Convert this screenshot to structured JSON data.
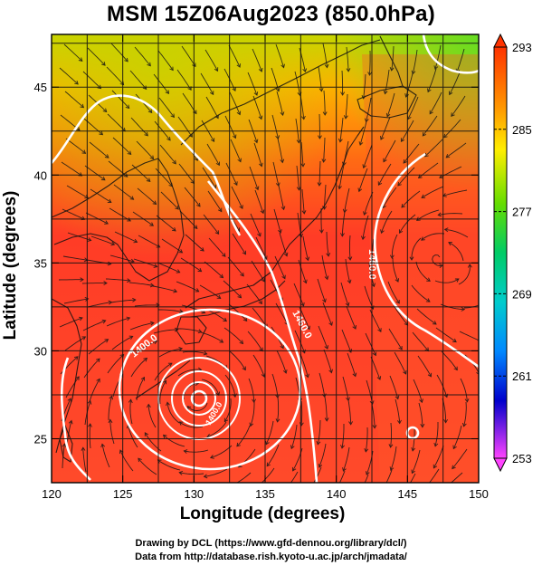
{
  "title": "MSM 15Z06Aug2023 (850.0hPa)",
  "x_axis": {
    "label": "Longitude (degrees)",
    "range": [
      120,
      150
    ],
    "ticks": [
      "120",
      "125",
      "130",
      "135",
      "140",
      "145",
      "150"
    ]
  },
  "y_axis": {
    "label": "Latitude  (degrees)",
    "range": [
      22.5,
      48
    ],
    "ticks": [
      "25",
      "30",
      "35",
      "40",
      "45"
    ]
  },
  "colorbar": {
    "ticks": [
      "293",
      "285",
      "277",
      "269",
      "261",
      "253"
    ],
    "range": [
      253,
      293
    ],
    "colors": [
      "#ff44ff",
      "#0000cc",
      "#0088ff",
      "#00cccc",
      "#00cc66",
      "#66dd00",
      "#ffee00",
      "#ff9900",
      "#ff3300"
    ]
  },
  "contours": [
    {
      "label": "1400.0"
    },
    {
      "label": "1460.0"
    },
    {
      "label": "1460.0"
    },
    {
      "label": "1400.0"
    }
  ],
  "credits": {
    "line1": "Drawing by DCL (https://www.gfd-dennou.org/library/dcl/)",
    "line2": "Data from http://database.rish.kyoto-u.ac.jp/arch/jmadata/"
  }
}
